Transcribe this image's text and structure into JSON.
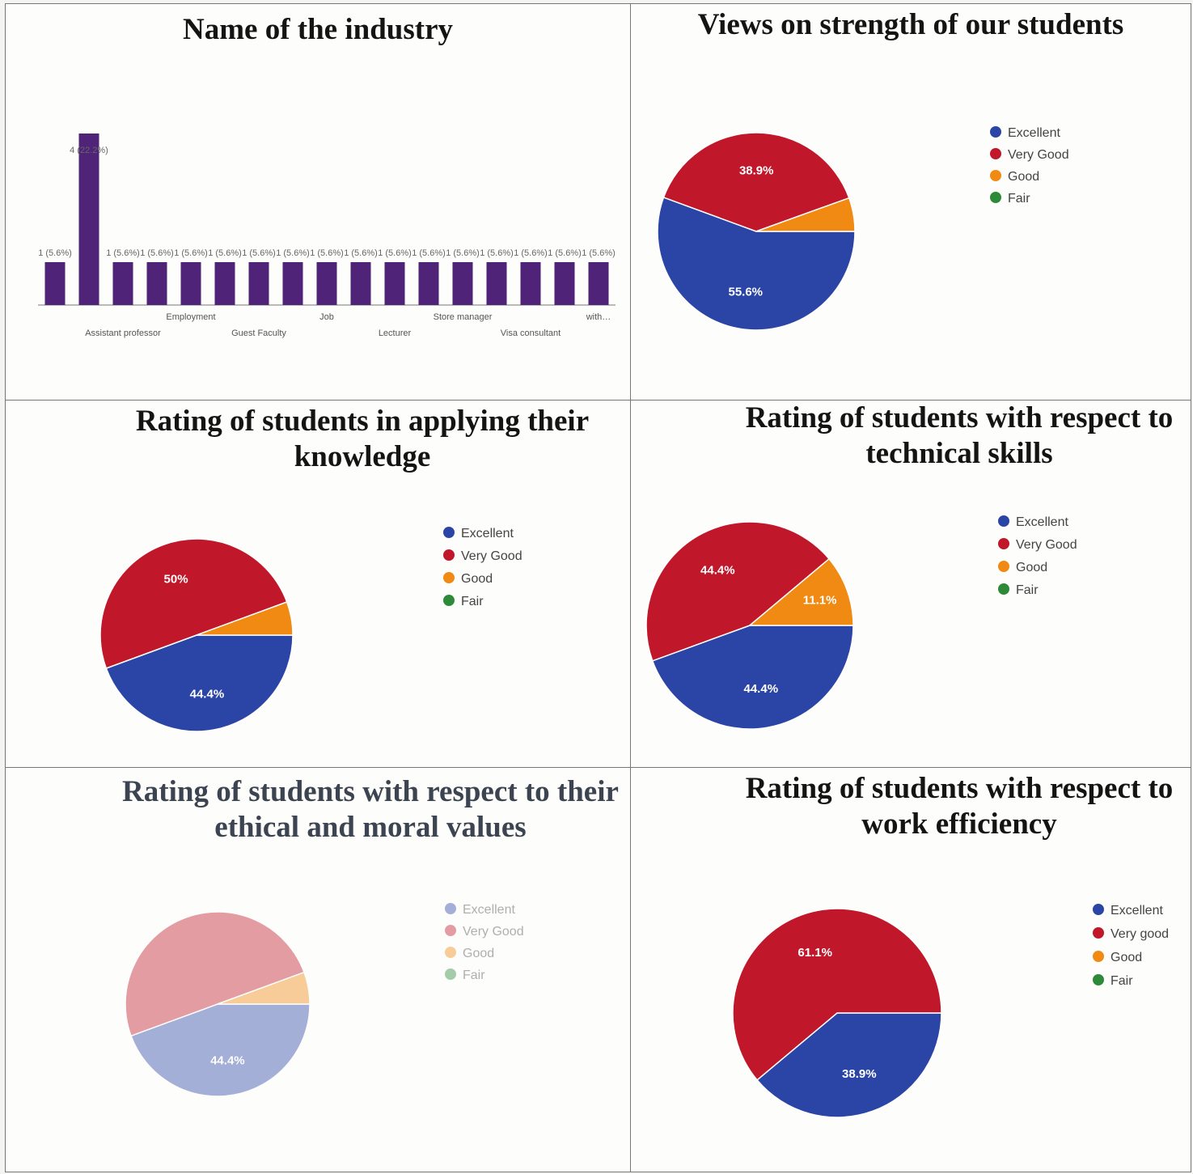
{
  "colors": {
    "excellent": "#2b45a6",
    "very_good": "#c0182a",
    "good": "#f08a12",
    "fair": "#2e8a38",
    "bar": "#4f2377"
  },
  "chart_data": [
    {
      "type": "bar",
      "title": "Name of the industry",
      "values": [
        1,
        4,
        1,
        1,
        1,
        1,
        1,
        1,
        1,
        1,
        1,
        1,
        1,
        1,
        1,
        1,
        1
      ],
      "bar_labels": [
        "1 (5.6%)",
        "4 (22.2%)",
        "1 (5.6%)",
        "1 (5.6%)",
        "1 (5.6%)",
        "1 (5.6%)",
        "1 (5.6%)",
        "1 (5.6%)",
        "1 (5.6%)",
        "1 (5.6%)",
        "1 (5.6%)",
        "1 (5.6%)",
        "1 (5.6%)",
        "1 (5.6%)",
        "1 (5.6%)",
        "1 (5.6%)",
        "1 (5.6%)"
      ],
      "category_labels": [
        {
          "index": 2,
          "label": "Assistant professor",
          "row": 2
        },
        {
          "index": 4,
          "label": "Employment",
          "row": 1
        },
        {
          "index": 6,
          "label": "Guest Faculty",
          "row": 2
        },
        {
          "index": 8,
          "label": "Job",
          "row": 1
        },
        {
          "index": 10,
          "label": "Lecturer",
          "row": 2
        },
        {
          "index": 12,
          "label": "Store manager",
          "row": 1
        },
        {
          "index": 14,
          "label": "Visa consultant",
          "row": 2
        },
        {
          "index": 16,
          "label": "with…",
          "row": 1
        }
      ],
      "ylim": [
        0,
        4
      ]
    },
    {
      "type": "pie",
      "title": "Views on strength of our students",
      "legend": [
        "Excellent",
        "Very Good",
        "Good",
        "Fair"
      ],
      "values": [
        55.6,
        38.9,
        5.5,
        0
      ],
      "labels": [
        "55.6%",
        "38.9%",
        "",
        ""
      ],
      "legend_position": "right"
    },
    {
      "type": "pie",
      "title": "Rating of students in applying their knowledge",
      "legend": [
        "Excellent",
        "Very Good",
        "Good",
        "Fair"
      ],
      "values": [
        44.4,
        50,
        5.6,
        0
      ],
      "labels": [
        "44.4%",
        "50%",
        "",
        ""
      ],
      "legend_position": "right"
    },
    {
      "type": "pie",
      "title": "Rating of students with respect to technical skills",
      "legend": [
        "Excellent",
        "Very Good",
        "Good",
        "Fair"
      ],
      "values": [
        44.4,
        44.4,
        11.1,
        0
      ],
      "labels": [
        "44.4%",
        "44.4%",
        "11.1%",
        ""
      ],
      "legend_position": "right"
    },
    {
      "type": "pie",
      "title": "Rating of students with respect to their ethical and moral values",
      "legend": [
        "Excellent",
        "Very Good",
        "Good",
        "Fair"
      ],
      "values": [
        44.4,
        50,
        5.6,
        0
      ],
      "labels": [
        "44.4%",
        "",
        "",
        ""
      ],
      "legend_position": "right"
    },
    {
      "type": "pie",
      "title": "Rating of students with respect to work efficiency",
      "legend": [
        "Excellent",
        "Very good",
        "Good",
        "Fair"
      ],
      "values": [
        38.9,
        61.1,
        0,
        0
      ],
      "labels": [
        "38.9%",
        "61.1%",
        "",
        ""
      ],
      "legend_position": "right"
    }
  ]
}
